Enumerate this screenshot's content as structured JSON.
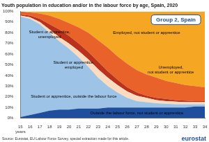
{
  "chart_data": {
    "type": "area",
    "title": "Youth population in education and/or in the labour force by age, Spain, 2020",
    "annotations": [
      "Group 2, Spain"
    ],
    "source": "Source: Eurostat, EU Labour Force Survey, special extraction made for this article.",
    "credit": "eurostat",
    "categories": [
      "15 years",
      "16",
      "17",
      "18",
      "19",
      "20",
      "21",
      "22",
      "23",
      "24",
      "25",
      "26",
      "27",
      "28",
      "29",
      "30",
      "31",
      "32",
      "33",
      "34"
    ],
    "stacked": true,
    "grid": false,
    "ylim": [
      0,
      100
    ],
    "yticks": [
      {
        "value": 0,
        "label": "0%"
      },
      {
        "value": 10,
        "label": "10%"
      },
      {
        "value": 20,
        "label": "20%"
      },
      {
        "value": 30,
        "label": "30%"
      },
      {
        "value": 40,
        "label": "40%"
      },
      {
        "value": 50,
        "label": "50%"
      },
      {
        "value": 60,
        "label": "60%"
      },
      {
        "value": 70,
        "label": "70%"
      },
      {
        "value": 80,
        "label": "80%"
      },
      {
        "value": 90,
        "label": "90%"
      },
      {
        "value": 100,
        "label": "100%"
      }
    ],
    "series": [
      {
        "name": "Outside the labour force, not student or apprentice",
        "color": "#1f4f9c",
        "values": [
          1,
          3,
          5,
          7,
          8,
          8,
          9,
          9,
          9,
          10,
          10,
          10,
          10,
          10,
          10,
          10,
          10,
          10,
          11,
          11
        ]
      },
      {
        "name": "Student or apprentice, outside the labour force",
        "color": "#9dc3e6",
        "values": [
          94,
          90,
          83,
          73,
          64,
          57,
          48,
          39,
          29,
          20,
          14,
          9,
          6,
          5,
          4,
          3.5,
          3,
          3,
          2,
          2
        ]
      },
      {
        "name": "Student or apprentice, employed",
        "color": "#fbdcc0",
        "values": [
          1,
          1.5,
          2,
          3,
          4,
          5,
          6,
          7,
          8,
          8,
          7,
          6,
          5,
          4,
          3,
          2.5,
          2.5,
          2,
          2,
          2
        ]
      },
      {
        "name": "Student or apprentice, unemployed",
        "color": "#b8321c",
        "values": [
          1,
          1.5,
          3,
          5,
          7,
          7,
          7,
          7,
          7,
          6,
          5,
          4,
          3,
          2,
          2,
          2,
          1.5,
          1.5,
          1,
          1
        ]
      },
      {
        "name": "Unemployed, not student or apprentice",
        "color": "#e8622a",
        "values": [
          3,
          3,
          5,
          8,
          10,
          12,
          15,
          18,
          20,
          22,
          22,
          22,
          21,
          20,
          19,
          17,
          16,
          14.5,
          14,
          13
        ]
      },
      {
        "name": "Employed, not student or apprentice",
        "color": "#f5a623",
        "values": [
          0,
          1,
          2,
          4,
          7,
          11,
          15,
          20,
          27,
          34,
          42,
          49,
          55,
          59,
          62,
          65,
          67,
          69,
          70,
          71
        ]
      }
    ]
  }
}
